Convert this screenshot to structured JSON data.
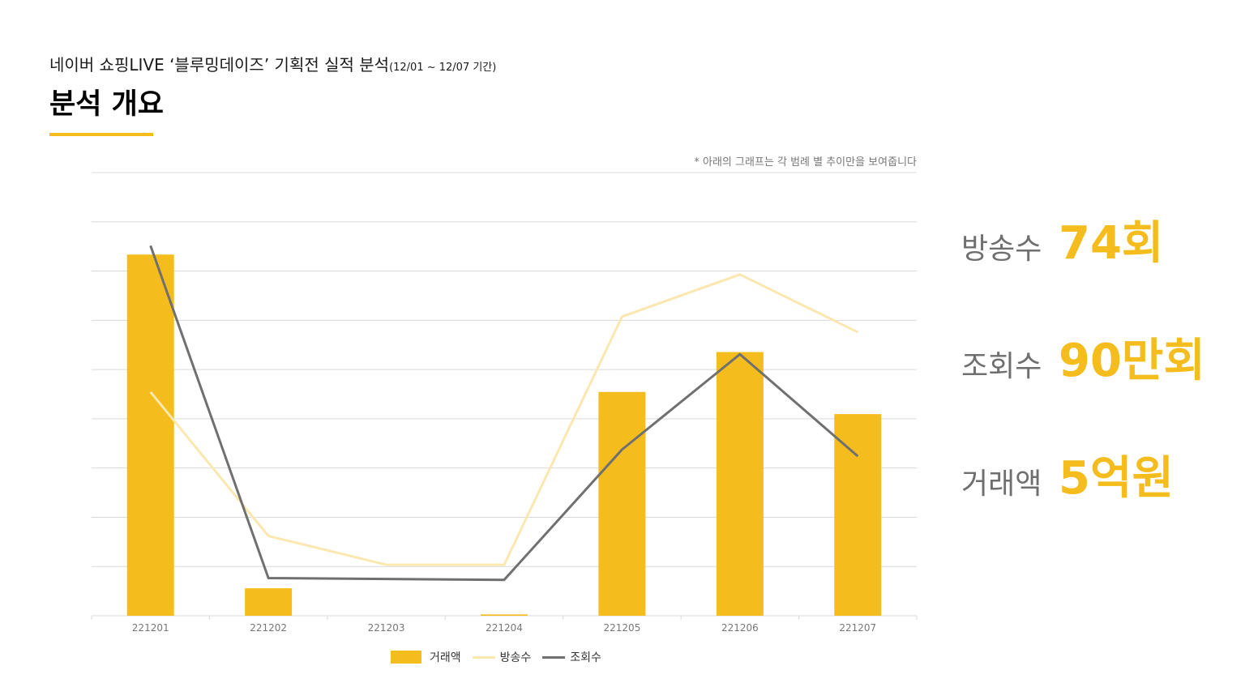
{
  "header": {
    "subtitle": "네이버 쇼핑LIVE ‘블루밍데이즈’ 기획전 실적 분석",
    "period": "(12/01 ~ 12/07 기간)",
    "title": "분석 개요"
  },
  "note": "* 아래의 그래프는 각 범례 별 추이만을 보여줍니다",
  "colors": {
    "accent": "#F4BC1C",
    "broadcast_line": "#FBE7B0",
    "views_line": "#707070",
    "grid": "#D9D9D9",
    "kpi_label": "#6F6F6F"
  },
  "chart_data": {
    "type": "bar",
    "categories": [
      "221201",
      "221202",
      "221203",
      "221204",
      "221205",
      "221206",
      "221207"
    ],
    "ylim": [
      0,
      100
    ],
    "grid": true,
    "legend_position": "bottom",
    "series": [
      {
        "name": "거래액",
        "type": "bar",
        "values": [
          81.5,
          6.2,
          0,
          0.3,
          50.5,
          59.5,
          45.5
        ]
      },
      {
        "name": "방송수",
        "type": "line",
        "values": [
          50.5,
          18,
          11.5,
          11.5,
          67.5,
          77,
          64
        ]
      },
      {
        "name": "조회수",
        "type": "line",
        "values": [
          83.5,
          8.5,
          8.3,
          8.1,
          37.5,
          59,
          36
        ]
      }
    ]
  },
  "kpis": [
    {
      "label": "방송수",
      "value": "74회"
    },
    {
      "label": "조회수",
      "value": "90만회"
    },
    {
      "label": "거래액",
      "value": "5억원"
    }
  ]
}
